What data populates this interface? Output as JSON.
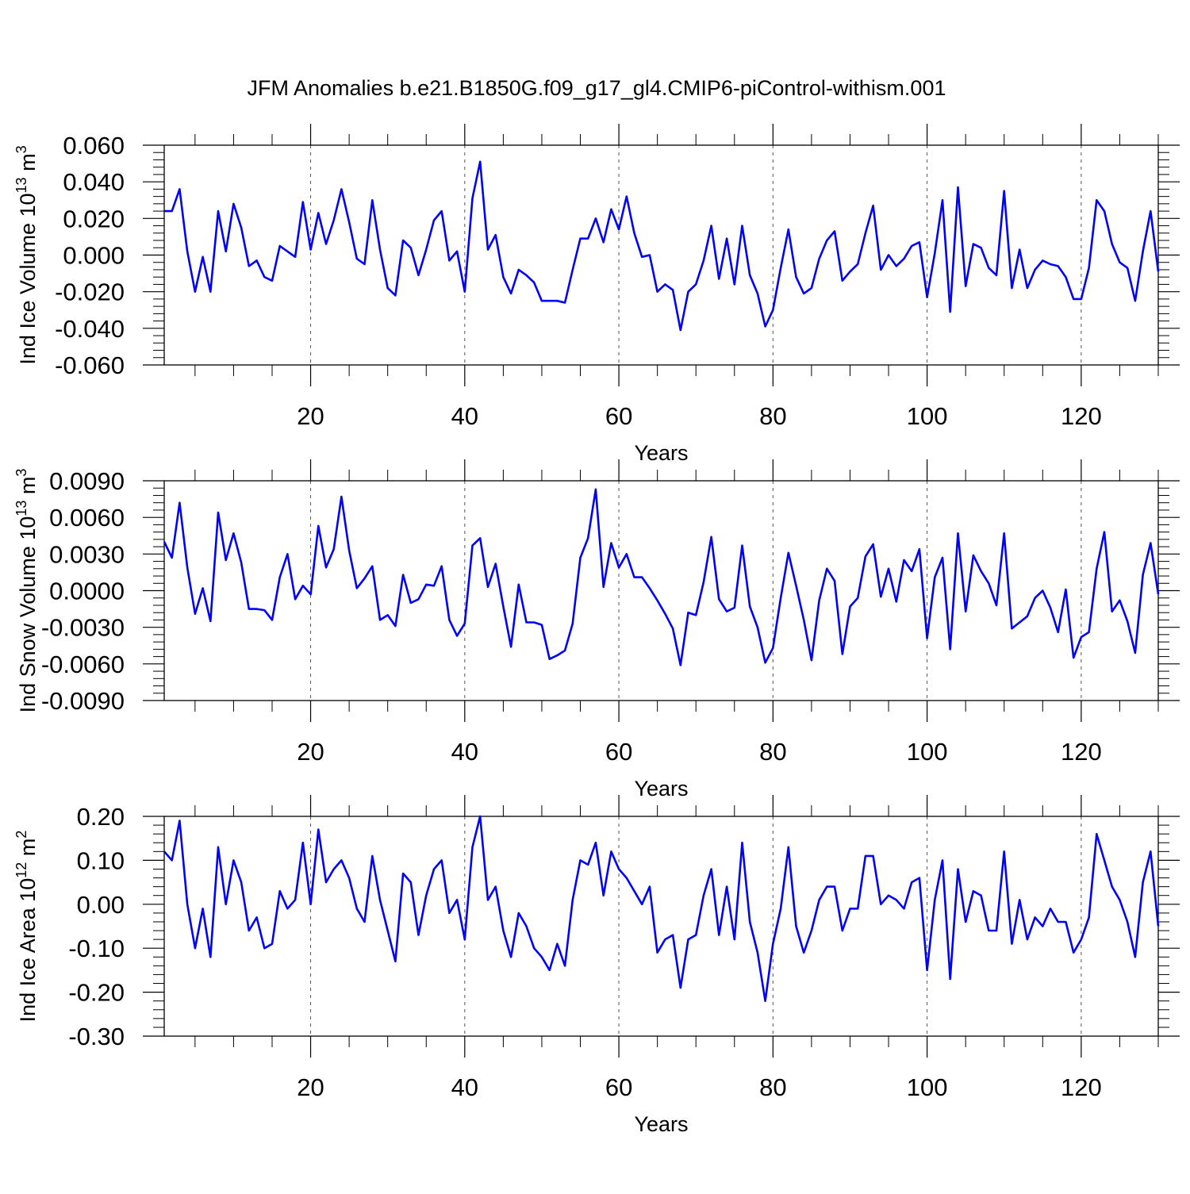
{
  "title": "JFM Anomalies b.e21.B1850G.f09_g17_gl4.CMIP6-piControl-withism.001",
  "colors": {
    "line": "#0000ff",
    "axis": "#000000",
    "grid": "#555555",
    "background": "#ffffff"
  },
  "chart_data": [
    {
      "type": "line",
      "ylabel": "Ind Ice Volume 10",
      "ylabel_exp": "13",
      "ylabel_unit": " m",
      "ylabel_unit_exp": "3",
      "xlabel": "Years",
      "xlim": [
        1,
        130
      ],
      "ylim": [
        -0.06,
        0.06
      ],
      "xticks": [
        20,
        40,
        60,
        80,
        100,
        120
      ],
      "xtick_labels": [
        "20",
        "40",
        "60",
        "80",
        "100",
        "120"
      ],
      "yticks": [
        -0.06,
        -0.04,
        -0.02,
        0,
        0.02,
        0.04,
        0.06
      ],
      "ytick_labels": [
        "-0.060",
        "-0.040",
        "-0.020",
        "0.000",
        "0.020",
        "0.040",
        "0.060"
      ],
      "grid_x": [
        20,
        40,
        60,
        80,
        100,
        120
      ],
      "series": [
        {
          "name": "Ind Ice Volume",
          "values": [
            0.024,
            0.024,
            0.036,
            0.002,
            -0.02,
            -0.001,
            -0.02,
            0.024,
            0.002,
            0.028,
            0.015,
            -0.006,
            -0.003,
            -0.012,
            -0.014,
            0.005,
            0.002,
            -0.001,
            0.029,
            0.003,
            0.023,
            0.006,
            0.019,
            0.036,
            0.018,
            -0.002,
            -0.005,
            0.03,
            0.003,
            -0.018,
            -0.022,
            0.008,
            0.004,
            -0.011,
            0.003,
            0.019,
            0.024,
            -0.003,
            0.002,
            -0.02,
            0.031,
            0.051,
            0.003,
            0.011,
            -0.012,
            -0.021,
            -0.008,
            -0.011,
            -0.015,
            -0.025,
            -0.025,
            -0.025,
            -0.026,
            -0.008,
            0.009,
            0.009,
            0.02,
            0.007,
            0.025,
            0.014,
            0.032,
            0.012,
            -0.001,
            0.0,
            -0.02,
            -0.016,
            -0.019,
            -0.041,
            -0.02,
            -0.016,
            -0.003,
            0.016,
            -0.013,
            0.009,
            -0.016,
            0.016,
            -0.011,
            -0.021,
            -0.039,
            -0.03,
            -0.007,
            0.014,
            -0.012,
            -0.021,
            -0.018,
            -0.002,
            0.008,
            0.013,
            -0.014,
            -0.009,
            -0.005,
            0.012,
            0.027,
            -0.008,
            0.0,
            -0.006,
            -0.002,
            0.005,
            0.007,
            -0.023,
            0.001,
            0.03,
            -0.031,
            0.037,
            -0.017,
            0.006,
            0.004,
            -0.007,
            -0.011,
            0.035,
            -0.018,
            0.003,
            -0.018,
            -0.008,
            -0.003,
            -0.005,
            -0.006,
            -0.012,
            -0.024,
            -0.024,
            -0.007,
            0.03,
            0.024,
            0.006,
            -0.004,
            -0.007,
            -0.025,
            0.002,
            0.024,
            -0.009
          ]
        }
      ]
    },
    {
      "type": "line",
      "ylabel": "Ind Snow Volume 10",
      "ylabel_exp": "13",
      "ylabel_unit": " m",
      "ylabel_unit_exp": "3",
      "xlabel": "Years",
      "xlim": [
        1,
        130
      ],
      "ylim": [
        -0.009,
        0.009
      ],
      "xticks": [
        20,
        40,
        60,
        80,
        100,
        120
      ],
      "xtick_labels": [
        "20",
        "40",
        "60",
        "80",
        "100",
        "120"
      ],
      "yticks": [
        -0.009,
        -0.006,
        -0.003,
        0,
        0.003,
        0.006,
        0.009
      ],
      "ytick_labels": [
        "-0.0090",
        "-0.0060",
        "-0.0030",
        "0.0000",
        "0.0030",
        "0.0060",
        "0.0090"
      ],
      "grid_x": [
        20,
        40,
        60,
        80,
        100,
        120
      ],
      "series": [
        {
          "name": "Ind Snow Volume",
          "values": [
            0.004,
            0.0027,
            0.0072,
            0.0019,
            -0.0019,
            0.0002,
            -0.0025,
            0.0064,
            0.0025,
            0.0047,
            0.0023,
            -0.0015,
            -0.0015,
            -0.0016,
            -0.0024,
            0.0011,
            0.003,
            -0.0007,
            0.0004,
            -0.0003,
            0.0053,
            0.0019,
            0.0034,
            0.0077,
            0.0033,
            0.0002,
            0.001,
            0.002,
            -0.0024,
            -0.002,
            -0.0029,
            0.0013,
            -0.001,
            -0.0007,
            0.0005,
            0.0004,
            0.002,
            -0.0024,
            -0.0037,
            -0.0027,
            0.0037,
            0.0043,
            0.0003,
            0.0022,
            -0.0013,
            -0.0046,
            0.0005,
            -0.0026,
            -0.0026,
            -0.0028,
            -0.0056,
            -0.0053,
            -0.0049,
            -0.0027,
            0.0027,
            0.0043,
            0.0083,
            0.0003,
            0.0039,
            0.0019,
            0.003,
            0.0011,
            0.0011,
            0.0002,
            -0.0008,
            -0.0019,
            -0.0031,
            -0.0061,
            -0.0018,
            -0.002,
            0.0007,
            0.0044,
            -0.0007,
            -0.0017,
            -0.0014,
            0.0037,
            -0.0013,
            -0.003,
            -0.0059,
            -0.0047,
            -0.0006,
            0.0031,
            0.0004,
            -0.0024,
            -0.0057,
            -0.0008,
            0.0018,
            0.0008,
            -0.0052,
            -0.0013,
            -0.0006,
            0.0028,
            0.0038,
            -0.0005,
            0.0018,
            -0.0009,
            0.0025,
            0.0016,
            0.0034,
            -0.0039,
            0.0011,
            0.0027,
            -0.0048,
            0.0047,
            -0.0017,
            0.0029,
            0.0016,
            0.0006,
            -0.0012,
            0.0047,
            -0.0031,
            -0.0026,
            -0.0021,
            -0.0006,
            0.0,
            -0.0014,
            -0.0034,
            0.0001,
            -0.0055,
            -0.0038,
            -0.0034,
            0.0018,
            0.0048,
            -0.0017,
            -0.0008,
            -0.0025,
            -0.0051,
            0.0013,
            0.0039,
            -0.0003
          ]
        }
      ]
    },
    {
      "type": "line",
      "ylabel": "Ind Ice Area 10",
      "ylabel_exp": "12",
      "ylabel_unit": " m",
      "ylabel_unit_exp": "2",
      "xlabel": "Years",
      "xlim": [
        1,
        130
      ],
      "ylim": [
        -0.3,
        0.2
      ],
      "xticks": [
        20,
        40,
        60,
        80,
        100,
        120
      ],
      "xtick_labels": [
        "20",
        "40",
        "60",
        "80",
        "100",
        "120"
      ],
      "yticks": [
        -0.3,
        -0.2,
        -0.1,
        0,
        0.1,
        0.2
      ],
      "ytick_labels": [
        "-0.30",
        "-0.20",
        "-0.10",
        "0.00",
        "0.10",
        "0.20"
      ],
      "grid_x": [
        20,
        40,
        60,
        80,
        100,
        120
      ],
      "series": [
        {
          "name": "Ind Ice Area",
          "values": [
            0.12,
            0.1,
            0.19,
            0.0,
            -0.1,
            -0.01,
            -0.12,
            0.13,
            0.0,
            0.1,
            0.05,
            -0.06,
            -0.03,
            -0.1,
            -0.09,
            0.03,
            -0.01,
            0.01,
            0.14,
            0.0,
            0.17,
            0.05,
            0.08,
            0.1,
            0.06,
            -0.01,
            -0.04,
            0.11,
            0.01,
            -0.06,
            -0.13,
            0.07,
            0.05,
            -0.07,
            0.02,
            0.08,
            0.1,
            -0.02,
            0.01,
            -0.08,
            0.13,
            0.2,
            0.01,
            0.04,
            -0.06,
            -0.12,
            -0.02,
            -0.05,
            -0.1,
            -0.12,
            -0.15,
            -0.09,
            -0.14,
            0.01,
            0.1,
            0.09,
            0.14,
            0.02,
            0.12,
            0.08,
            0.06,
            0.03,
            0.0,
            0.04,
            -0.11,
            -0.08,
            -0.07,
            -0.19,
            -0.08,
            -0.07,
            0.02,
            0.08,
            -0.07,
            0.04,
            -0.08,
            0.14,
            -0.04,
            -0.11,
            -0.22,
            -0.09,
            -0.01,
            0.13,
            -0.05,
            -0.11,
            -0.06,
            0.01,
            0.04,
            0.04,
            -0.06,
            -0.01,
            -0.01,
            0.11,
            0.11,
            0.0,
            0.02,
            0.01,
            -0.01,
            0.05,
            0.06,
            -0.15,
            0.01,
            0.1,
            -0.17,
            0.08,
            -0.04,
            0.03,
            0.02,
            -0.06,
            -0.06,
            0.12,
            -0.09,
            0.01,
            -0.08,
            -0.03,
            -0.05,
            -0.01,
            -0.04,
            -0.04,
            -0.11,
            -0.08,
            -0.03,
            0.16,
            0.1,
            0.04,
            0.01,
            -0.04,
            -0.12,
            0.05,
            0.12,
            -0.05
          ]
        }
      ]
    }
  ]
}
